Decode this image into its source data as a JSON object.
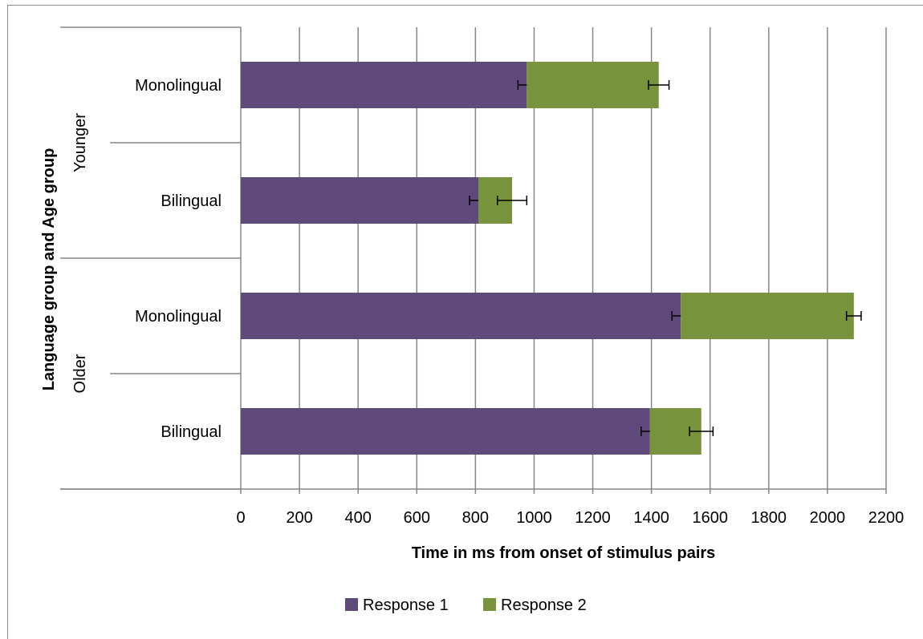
{
  "chart_data": {
    "type": "bar",
    "orientation": "horizontal",
    "stacked": true,
    "xlabel": "Time in ms from onset of stimulus pairs",
    "ylabel": "Language group and Age group",
    "xlim": [
      0,
      2200
    ],
    "xticks": [
      "0",
      "200",
      "400",
      "600",
      "800",
      "1000",
      "1200",
      "1400",
      "1600",
      "1800",
      "2000",
      "2200"
    ],
    "grid": true,
    "legend_position": "bottom",
    "colors": {
      "Response 1": "#604a7b",
      "Response 2": "#77933c"
    },
    "groups": [
      {
        "label": "Younger",
        "categories": [
          "Monolingual",
          "Bilingual"
        ]
      },
      {
        "label": "Older",
        "categories": [
          "Monolingual",
          "Bilingual"
        ]
      }
    ],
    "categories": [
      "Younger Monolingual",
      "Younger Bilingual",
      "Older Monolingual",
      "Older Bilingual"
    ],
    "category_labels": [
      "Monolingual",
      "Bilingual",
      "Monolingual",
      "Bilingual"
    ],
    "series": [
      {
        "name": "Response 1",
        "values": [
          975,
          810,
          1500,
          1395
        ],
        "error": [
          30,
          30,
          30,
          30
        ]
      },
      {
        "name": "Response 2",
        "values": [
          450,
          115,
          590,
          175
        ],
        "error": [
          35,
          50,
          25,
          40
        ]
      }
    ]
  }
}
